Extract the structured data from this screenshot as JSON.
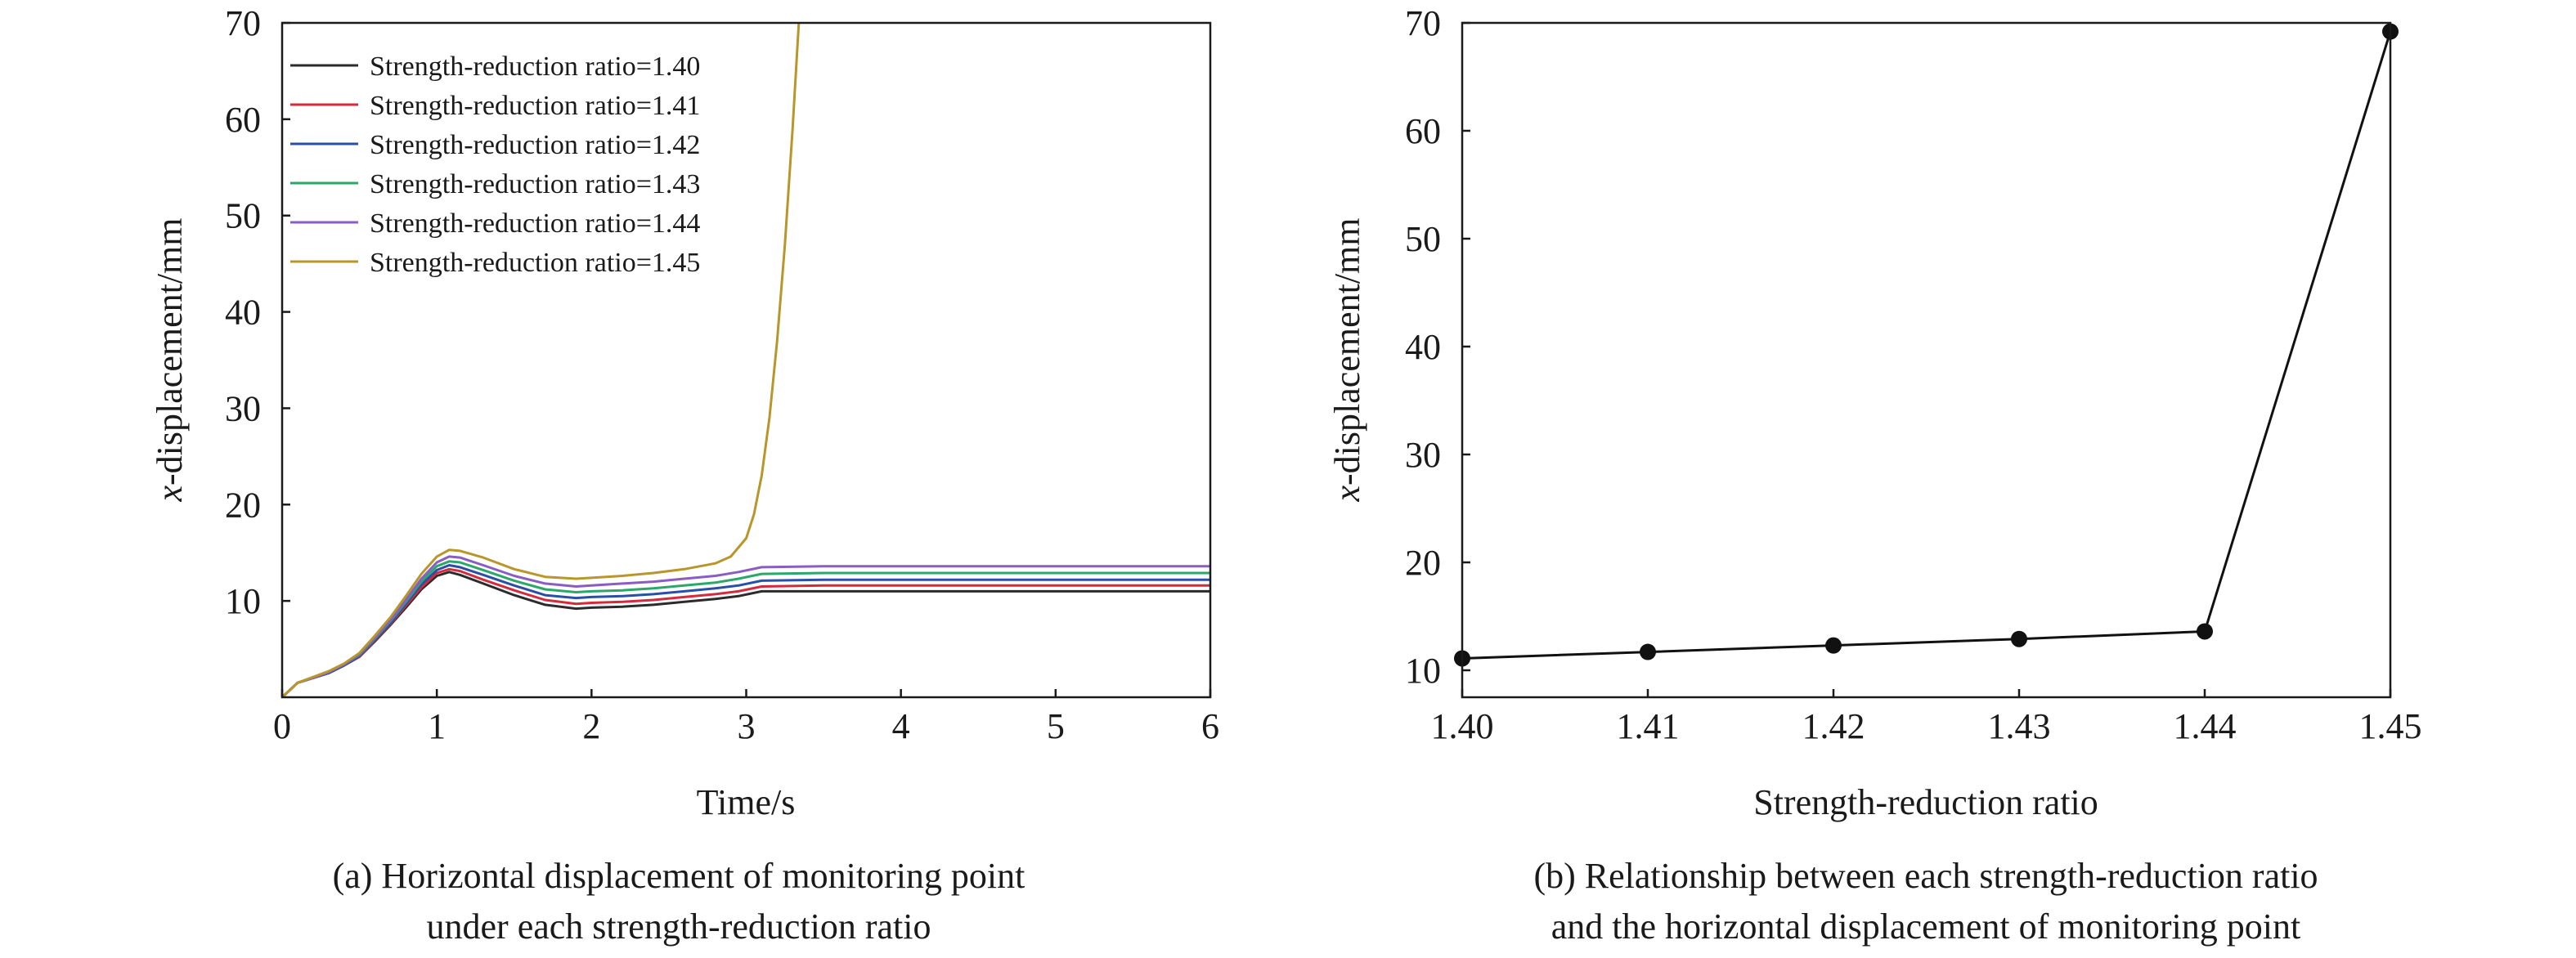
{
  "chart_data": [
    {
      "type": "line",
      "panel_caption": [
        "(a) Horizontal displacement of monitoring point",
        "under each strength-reduction ratio"
      ],
      "xlabel": "Time/s",
      "ylabel": "x-displacement/mm",
      "ylabel_italic_part": "x",
      "ylabel_rest": "-displacement/mm",
      "xlim": [
        0,
        6
      ],
      "ylim": [
        0,
        70
      ],
      "xticks": [
        0,
        1,
        2,
        3,
        4,
        5,
        6
      ],
      "yticks": [
        10,
        20,
        30,
        40,
        50,
        60,
        70
      ],
      "grid": false,
      "legend_position": "top-left",
      "series": [
        {
          "name": "Strength-reduction ratio=1.40",
          "color": "#2b2b2b",
          "points": [
            [
              0,
              0
            ],
            [
              0.1,
              1.5
            ],
            [
              0.2,
              2.0
            ],
            [
              0.3,
              2.5
            ],
            [
              0.4,
              3.3
            ],
            [
              0.5,
              4.2
            ],
            [
              0.6,
              5.8
            ],
            [
              0.7,
              7.5
            ],
            [
              0.8,
              9.3
            ],
            [
              0.9,
              11.2
            ],
            [
              1.0,
              12.6
            ],
            [
              1.08,
              13.0
            ],
            [
              1.15,
              12.7
            ],
            [
              1.3,
              11.8
            ],
            [
              1.5,
              10.6
            ],
            [
              1.7,
              9.6
            ],
            [
              1.9,
              9.2
            ],
            [
              2.0,
              9.3
            ],
            [
              2.2,
              9.4
            ],
            [
              2.4,
              9.6
            ],
            [
              2.6,
              9.9
            ],
            [
              2.8,
              10.2
            ],
            [
              2.95,
              10.5
            ],
            [
              3.1,
              11.0
            ],
            [
              3.5,
              11.0
            ],
            [
              4.0,
              11.0
            ],
            [
              5.0,
              11.0
            ],
            [
              6.0,
              11.0
            ]
          ]
        },
        {
          "name": "Strength-reduction ratio=1.41",
          "color": "#d42a3c",
          "points": [
            [
              0,
              0
            ],
            [
              0.1,
              1.5
            ],
            [
              0.2,
              2.0
            ],
            [
              0.3,
              2.5
            ],
            [
              0.4,
              3.3
            ],
            [
              0.5,
              4.2
            ],
            [
              0.6,
              5.9
            ],
            [
              0.7,
              7.6
            ],
            [
              0.8,
              9.5
            ],
            [
              0.9,
              11.4
            ],
            [
              1.0,
              12.9
            ],
            [
              1.08,
              13.3
            ],
            [
              1.15,
              13.1
            ],
            [
              1.3,
              12.2
            ],
            [
              1.5,
              11.1
            ],
            [
              1.7,
              10.1
            ],
            [
              1.9,
              9.7
            ],
            [
              2.0,
              9.8
            ],
            [
              2.2,
              9.9
            ],
            [
              2.4,
              10.1
            ],
            [
              2.6,
              10.4
            ],
            [
              2.8,
              10.7
            ],
            [
              2.95,
              11.0
            ],
            [
              3.1,
              11.5
            ],
            [
              3.5,
              11.6
            ],
            [
              4.0,
              11.6
            ],
            [
              5.0,
              11.6
            ],
            [
              6.0,
              11.6
            ]
          ]
        },
        {
          "name": "Strength-reduction ratio=1.42",
          "color": "#2a4fa8",
          "points": [
            [
              0,
              0
            ],
            [
              0.1,
              1.5
            ],
            [
              0.2,
              2.0
            ],
            [
              0.3,
              2.5
            ],
            [
              0.4,
              3.3
            ],
            [
              0.5,
              4.3
            ],
            [
              0.6,
              6.0
            ],
            [
              0.7,
              7.7
            ],
            [
              0.8,
              9.7
            ],
            [
              0.9,
              11.7
            ],
            [
              1.0,
              13.2
            ],
            [
              1.08,
              13.7
            ],
            [
              1.15,
              13.5
            ],
            [
              1.3,
              12.7
            ],
            [
              1.5,
              11.6
            ],
            [
              1.7,
              10.6
            ],
            [
              1.9,
              10.3
            ],
            [
              2.0,
              10.4
            ],
            [
              2.2,
              10.5
            ],
            [
              2.4,
              10.7
            ],
            [
              2.6,
              11.0
            ],
            [
              2.8,
              11.3
            ],
            [
              2.95,
              11.6
            ],
            [
              3.1,
              12.1
            ],
            [
              3.5,
              12.2
            ],
            [
              4.0,
              12.2
            ],
            [
              5.0,
              12.2
            ],
            [
              6.0,
              12.2
            ]
          ]
        },
        {
          "name": "Strength-reduction ratio=1.43",
          "color": "#2aa86a",
          "points": [
            [
              0,
              0
            ],
            [
              0.1,
              1.5
            ],
            [
              0.2,
              2.0
            ],
            [
              0.3,
              2.6
            ],
            [
              0.4,
              3.4
            ],
            [
              0.5,
              4.4
            ],
            [
              0.6,
              6.1
            ],
            [
              0.7,
              7.9
            ],
            [
              0.8,
              9.9
            ],
            [
              0.9,
              12.0
            ],
            [
              1.0,
              13.6
            ],
            [
              1.08,
              14.1
            ],
            [
              1.15,
              14.0
            ],
            [
              1.3,
              13.2
            ],
            [
              1.5,
              12.1
            ],
            [
              1.7,
              11.2
            ],
            [
              1.9,
              10.9
            ],
            [
              2.0,
              11.0
            ],
            [
              2.2,
              11.1
            ],
            [
              2.4,
              11.3
            ],
            [
              2.6,
              11.6
            ],
            [
              2.8,
              11.9
            ],
            [
              2.95,
              12.3
            ],
            [
              3.1,
              12.8
            ],
            [
              3.5,
              12.9
            ],
            [
              4.0,
              12.9
            ],
            [
              5.0,
              12.9
            ],
            [
              6.0,
              12.9
            ]
          ]
        },
        {
          "name": "Strength-reduction ratio=1.44",
          "color": "#8a5cc4",
          "points": [
            [
              0,
              0
            ],
            [
              0.1,
              1.5
            ],
            [
              0.2,
              2.0
            ],
            [
              0.3,
              2.6
            ],
            [
              0.4,
              3.4
            ],
            [
              0.5,
              4.5
            ],
            [
              0.6,
              6.2
            ],
            [
              0.7,
              8.0
            ],
            [
              0.8,
              10.1
            ],
            [
              0.9,
              12.3
            ],
            [
              1.0,
              14.0
            ],
            [
              1.08,
              14.6
            ],
            [
              1.15,
              14.5
            ],
            [
              1.3,
              13.7
            ],
            [
              1.5,
              12.6
            ],
            [
              1.7,
              11.8
            ],
            [
              1.9,
              11.5
            ],
            [
              2.0,
              11.6
            ],
            [
              2.2,
              11.8
            ],
            [
              2.4,
              12.0
            ],
            [
              2.6,
              12.3
            ],
            [
              2.8,
              12.6
            ],
            [
              2.95,
              13.0
            ],
            [
              3.1,
              13.5
            ],
            [
              3.5,
              13.6
            ],
            [
              4.0,
              13.6
            ],
            [
              5.0,
              13.6
            ],
            [
              6.0,
              13.6
            ]
          ]
        },
        {
          "name": "Strength-reduction ratio=1.45",
          "color": "#b8962a",
          "points": [
            [
              0,
              0
            ],
            [
              0.1,
              1.5
            ],
            [
              0.2,
              2.1
            ],
            [
              0.3,
              2.7
            ],
            [
              0.4,
              3.5
            ],
            [
              0.5,
              4.6
            ],
            [
              0.6,
              6.4
            ],
            [
              0.7,
              8.3
            ],
            [
              0.8,
              10.5
            ],
            [
              0.9,
              12.8
            ],
            [
              1.0,
              14.6
            ],
            [
              1.08,
              15.3
            ],
            [
              1.15,
              15.2
            ],
            [
              1.3,
              14.5
            ],
            [
              1.5,
              13.3
            ],
            [
              1.7,
              12.5
            ],
            [
              1.9,
              12.3
            ],
            [
              2.0,
              12.4
            ],
            [
              2.2,
              12.6
            ],
            [
              2.4,
              12.9
            ],
            [
              2.6,
              13.3
            ],
            [
              2.8,
              13.9
            ],
            [
              2.9,
              14.6
            ],
            [
              3.0,
              16.5
            ],
            [
              3.05,
              19.0
            ],
            [
              3.1,
              23.0
            ],
            [
              3.15,
              29.0
            ],
            [
              3.2,
              37.0
            ],
            [
              3.25,
              47.0
            ],
            [
              3.3,
              59.0
            ],
            [
              3.34,
              70.0
            ]
          ]
        }
      ]
    },
    {
      "type": "line",
      "panel_caption": [
        "(b) Relationship between each strength-reduction ratio",
        "and the horizontal displacement of monitoring point"
      ],
      "xlabel": "Strength-reduction ratio",
      "ylabel": "x-displacement/mm",
      "ylabel_italic_part": "x",
      "ylabel_rest": "-displacement/mm",
      "xlim": [
        1.4,
        1.45
      ],
      "ylim": [
        7.5,
        70
      ],
      "xticks": [
        "1.40",
        "1.41",
        "1.42",
        "1.43",
        "1.44",
        "1.45"
      ],
      "yticks": [
        10,
        20,
        30,
        40,
        50,
        60,
        70
      ],
      "grid": false,
      "markers": "filled-circle",
      "x": [
        1.4,
        1.41,
        1.42,
        1.43,
        1.44,
        1.45
      ],
      "values": [
        11.1,
        11.7,
        12.3,
        12.9,
        13.6,
        69.2
      ],
      "color": "#111111"
    }
  ]
}
